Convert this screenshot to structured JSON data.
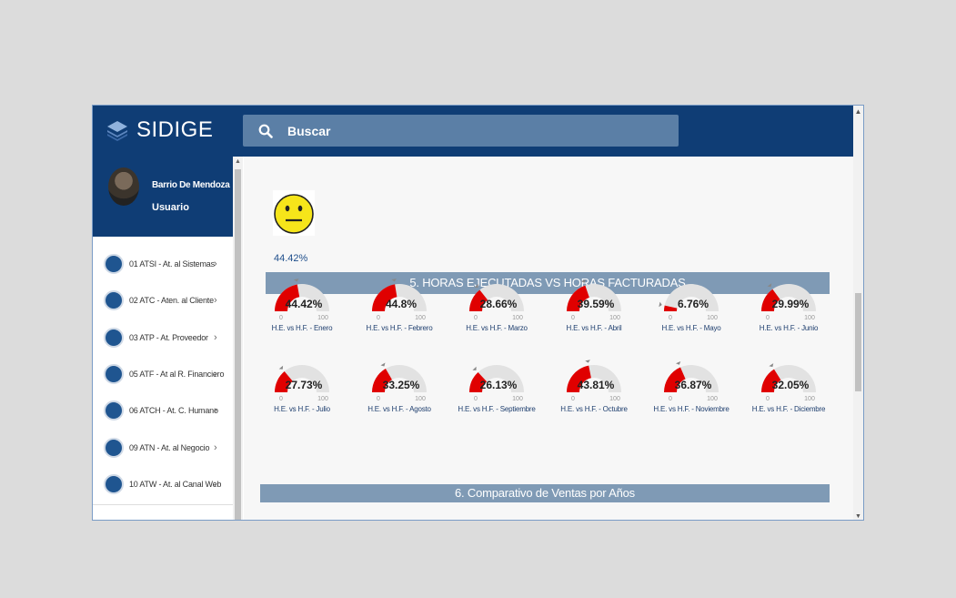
{
  "app": {
    "title": "SIDIGE"
  },
  "search": {
    "placeholder": "Buscar"
  },
  "user": {
    "name": "Barrio De Mendoza",
    "role": "Usuario"
  },
  "menu": [
    {
      "label": "01 ATSI - At. al Sistemas",
      "icon": "gears-icon"
    },
    {
      "label": "02 ATC - Aten. al Cliente",
      "icon": "users-icon"
    },
    {
      "label": "03 ATP - At. Proveedor",
      "icon": "delivery-icon"
    },
    {
      "label": "05 ATF - At al R. Financiero",
      "icon": "chart-icon"
    },
    {
      "label": "06 ATCH - At. C. Humano",
      "icon": "people-icon"
    },
    {
      "label": "09 ATN - At. al Negocio",
      "icon": "handshake-icon"
    },
    {
      "label": "10 ATW - At. al Canal Web",
      "icon": "globe-icon"
    }
  ],
  "satisfaction": {
    "pct": "44.42%",
    "icon": "neutral-face-icon"
  },
  "sections": {
    "s5": "5. HORAS EJECUTADAS VS HORAS FACTURADAS",
    "s6": "6. Comparativo de Ventas por Años"
  },
  "gauges": [
    {
      "label": "H.E. vs H.F. - Enero",
      "value": 44.42,
      "text": "44.42%"
    },
    {
      "label": "H.E. vs H.F. - Febrero",
      "value": 44.8,
      "text": "44.8%"
    },
    {
      "label": "H.E. vs H.F. - Marzo",
      "value": 28.66,
      "text": "28.66%"
    },
    {
      "label": "H.E. vs H.F. - Abril",
      "value": 39.59,
      "text": "39.59%"
    },
    {
      "label": "H.E. vs H.F. - Mayo",
      "value": 6.76,
      "text": "6.76%"
    },
    {
      "label": "H.E. vs H.F. - Junio",
      "value": 29.99,
      "text": "29.99%"
    },
    {
      "label": "H.E. vs H.F. - Julio",
      "value": 27.73,
      "text": "27.73%"
    },
    {
      "label": "H.E. vs H.F. - Agosto",
      "value": 33.25,
      "text": "33.25%"
    },
    {
      "label": "H.E. vs H.F. - Septiembre",
      "value": 26.13,
      "text": "26.13%"
    },
    {
      "label": "H.E. vs H.F. - Octubre",
      "value": 43.81,
      "text": "43.81%"
    },
    {
      "label": "H.E. vs H.F. - Noviembre",
      "value": 36.87,
      "text": "36.87%"
    },
    {
      "label": "H.E. vs H.F. - Diciembre",
      "value": 32.05,
      "text": "32.05%"
    }
  ],
  "gauge_scale": {
    "min": "0",
    "max": "100"
  },
  "colors": {
    "brand": "#0f3d75",
    "gauge_fill": "#e00000",
    "gauge_track": "#e2e2e2",
    "section_bar": "#7f9ab5"
  }
}
